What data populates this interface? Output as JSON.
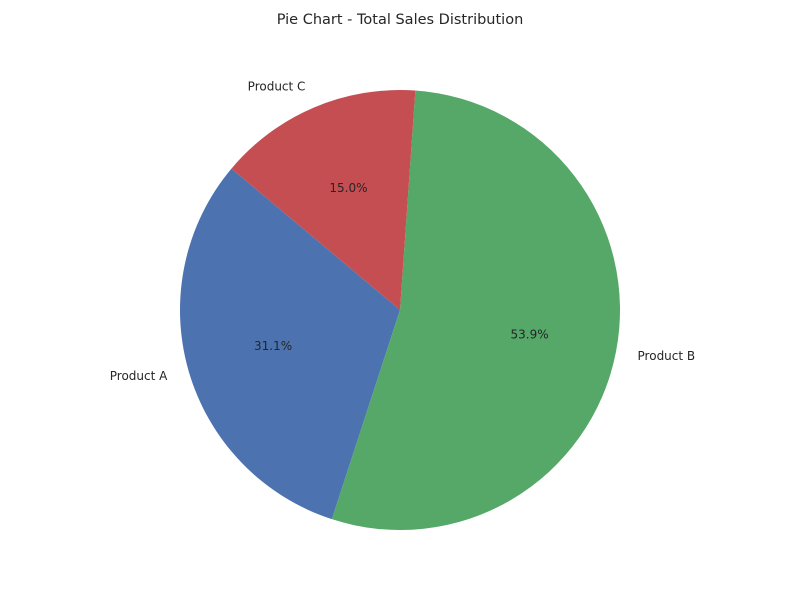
{
  "chart_data": {
    "type": "pie",
    "title": "Pie Chart - Total Sales Distribution",
    "slices": [
      {
        "label": "Product A",
        "percent": 31.1,
        "percent_label": "31.1%",
        "color": "#4c72b0"
      },
      {
        "label": "Product B",
        "percent": 53.9,
        "percent_label": "53.9%",
        "color": "#55a868"
      },
      {
        "label": "Product C",
        "percent": 15.0,
        "percent_label": "15.0%",
        "color": "#c44e52"
      }
    ],
    "start_angle_deg": 140,
    "direction": "counterclockwise",
    "legend": "none"
  }
}
